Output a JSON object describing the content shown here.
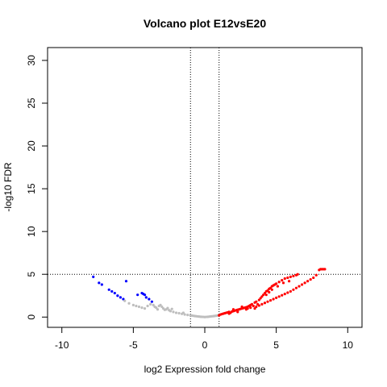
{
  "chart_data": {
    "type": "scatter",
    "title": "Volcano plot E12vsE20",
    "xlabel": "log2 Expression fold change",
    "ylabel": "-log10 FDR",
    "xlim": [
      -11,
      11
    ],
    "ylim": [
      -1.2,
      31.5
    ],
    "x_ticks": [
      "-10",
      "-5",
      "0",
      "5",
      "10"
    ],
    "x_tick_values": [
      -10,
      -5,
      0,
      5,
      10
    ],
    "y_ticks": [
      "0",
      "5",
      "10",
      "15",
      "20",
      "25",
      "30"
    ],
    "y_tick_values": [
      0,
      5,
      10,
      15,
      20,
      25,
      30
    ],
    "vlines": [
      -1,
      1
    ],
    "hline": 5,
    "colors": {
      "not_significant": "#bebebe",
      "down": "#0000ff",
      "up": "#ff0000"
    },
    "series": [
      {
        "color_key": "down",
        "points": [
          [
            -7.8,
            4.7
          ],
          [
            -7.4,
            4.0
          ],
          [
            -7.2,
            3.8
          ],
          [
            -6.7,
            3.2
          ],
          [
            -6.5,
            3.0
          ],
          [
            -6.3,
            2.8
          ],
          [
            -6.1,
            2.5
          ],
          [
            -5.9,
            2.3
          ],
          [
            -5.7,
            2.1
          ],
          [
            -5.5,
            4.2
          ],
          [
            -4.7,
            2.6
          ],
          [
            -4.4,
            2.8
          ],
          [
            -4.3,
            2.7
          ],
          [
            -4.2,
            2.6
          ],
          [
            -4.1,
            2.3
          ],
          [
            -3.9,
            2.1
          ],
          [
            -3.7,
            1.8
          ]
        ]
      },
      {
        "color_key": "not_significant",
        "points": [
          [
            -5.6,
            1.9
          ],
          [
            -5.3,
            1.6
          ],
          [
            -5.0,
            1.4
          ],
          [
            -4.8,
            1.3
          ],
          [
            -4.6,
            1.2
          ],
          [
            -4.4,
            1.1
          ],
          [
            -4.2,
            1.0
          ],
          [
            -4.0,
            1.3
          ],
          [
            -3.8,
            1.5
          ],
          [
            -3.6,
            1.4
          ],
          [
            -3.5,
            1.2
          ],
          [
            -3.4,
            1.1
          ],
          [
            -3.3,
            0.9
          ],
          [
            -3.2,
            1.3
          ],
          [
            -3.0,
            1.2
          ],
          [
            -2.9,
            1.0
          ],
          [
            -2.8,
            0.85
          ],
          [
            -2.7,
            0.9
          ],
          [
            -2.5,
            0.8
          ],
          [
            -2.4,
            0.7
          ],
          [
            -2.2,
            0.6
          ],
          [
            -2.0,
            0.5
          ],
          [
            -1.8,
            0.45
          ],
          [
            -1.6,
            0.38
          ],
          [
            -1.4,
            0.3
          ],
          [
            -1.2,
            0.25
          ],
          [
            -1.0,
            0.2
          ],
          [
            -0.9,
            0.18
          ],
          [
            -0.8,
            0.15
          ],
          [
            -0.7,
            0.12
          ],
          [
            -0.6,
            0.1
          ],
          [
            -0.5,
            0.08
          ],
          [
            -0.4,
            0.06
          ],
          [
            -0.3,
            0.04
          ],
          [
            -0.2,
            0.03
          ],
          [
            -0.1,
            0.02
          ],
          [
            0.0,
            0.0
          ],
          [
            0.1,
            0.02
          ],
          [
            0.2,
            0.03
          ],
          [
            0.3,
            0.05
          ],
          [
            0.4,
            0.07
          ],
          [
            0.5,
            0.09
          ],
          [
            0.6,
            0.11
          ],
          [
            0.7,
            0.13
          ],
          [
            0.8,
            0.16
          ],
          [
            0.9,
            0.19
          ],
          [
            -2.3,
            0.95
          ],
          [
            -2.6,
            1.05
          ],
          [
            -3.1,
            1.4
          ],
          [
            -1.5,
            0.5
          ]
        ]
      },
      {
        "color_key": "up",
        "points": [
          [
            1.0,
            0.2
          ],
          [
            1.1,
            0.3
          ],
          [
            1.2,
            0.35
          ],
          [
            1.3,
            0.4
          ],
          [
            1.4,
            0.45
          ],
          [
            1.5,
            0.5
          ],
          [
            1.6,
            0.55
          ],
          [
            1.7,
            0.6
          ],
          [
            1.8,
            0.5
          ],
          [
            1.9,
            0.65
          ],
          [
            2.0,
            0.7
          ],
          [
            2.1,
            0.75
          ],
          [
            2.2,
            0.8
          ],
          [
            2.3,
            0.85
          ],
          [
            2.4,
            0.9
          ],
          [
            2.5,
            0.95
          ],
          [
            2.6,
            1.0
          ],
          [
            2.7,
            1.05
          ],
          [
            2.8,
            1.1
          ],
          [
            2.9,
            1.15
          ],
          [
            3.0,
            1.2
          ],
          [
            3.1,
            1.3
          ],
          [
            3.2,
            1.4
          ],
          [
            3.3,
            1.5
          ],
          [
            3.4,
            1.3
          ],
          [
            3.5,
            1.7
          ],
          [
            3.6,
            1.8
          ],
          [
            3.7,
            1.5
          ],
          [
            3.8,
            2.0
          ],
          [
            3.9,
            2.2
          ],
          [
            4.0,
            2.4
          ],
          [
            4.1,
            2.6
          ],
          [
            4.2,
            2.8
          ],
          [
            4.3,
            3.0
          ],
          [
            4.4,
            3.1
          ],
          [
            4.5,
            3.3
          ],
          [
            4.6,
            3.4
          ],
          [
            4.7,
            3.6
          ],
          [
            4.8,
            3.7
          ],
          [
            4.9,
            3.8
          ],
          [
            5.0,
            3.9
          ],
          [
            5.2,
            4.1
          ],
          [
            5.4,
            4.3
          ],
          [
            5.6,
            4.5
          ],
          [
            5.8,
            4.6
          ],
          [
            6.0,
            4.7
          ],
          [
            6.2,
            4.8
          ],
          [
            6.4,
            4.9
          ],
          [
            6.5,
            5.0
          ],
          [
            3.6,
            1.2
          ],
          [
            3.8,
            1.35
          ],
          [
            4.0,
            1.5
          ],
          [
            4.2,
            1.65
          ],
          [
            4.4,
            1.8
          ],
          [
            4.6,
            1.95
          ],
          [
            4.8,
            2.1
          ],
          [
            5.0,
            2.25
          ],
          [
            5.2,
            2.4
          ],
          [
            5.4,
            2.55
          ],
          [
            5.6,
            2.7
          ],
          [
            5.8,
            2.85
          ],
          [
            6.0,
            3.0
          ],
          [
            6.2,
            3.2
          ],
          [
            6.4,
            3.4
          ],
          [
            6.6,
            3.6
          ],
          [
            6.8,
            3.8
          ],
          [
            7.0,
            4.0
          ],
          [
            7.2,
            4.2
          ],
          [
            7.4,
            4.4
          ],
          [
            7.6,
            4.6
          ],
          [
            7.8,
            4.9
          ],
          [
            8.0,
            5.5
          ],
          [
            8.1,
            5.6
          ],
          [
            8.2,
            5.6
          ],
          [
            8.3,
            5.6
          ],
          [
            8.4,
            5.6
          ],
          [
            4.3,
            2.6
          ],
          [
            4.5,
            2.9
          ],
          [
            4.7,
            3.2
          ],
          [
            5.1,
            3.6
          ],
          [
            5.5,
            4.0
          ],
          [
            5.9,
            4.2
          ],
          [
            3.0,
            1.0
          ],
          [
            2.6,
            1.2
          ],
          [
            2.3,
            0.6
          ],
          [
            2.0,
            0.9
          ],
          [
            1.7,
            0.4
          ],
          [
            3.5,
            1.0
          ],
          [
            3.2,
            1.1
          ],
          [
            2.9,
            0.9
          ]
        ]
      }
    ]
  }
}
